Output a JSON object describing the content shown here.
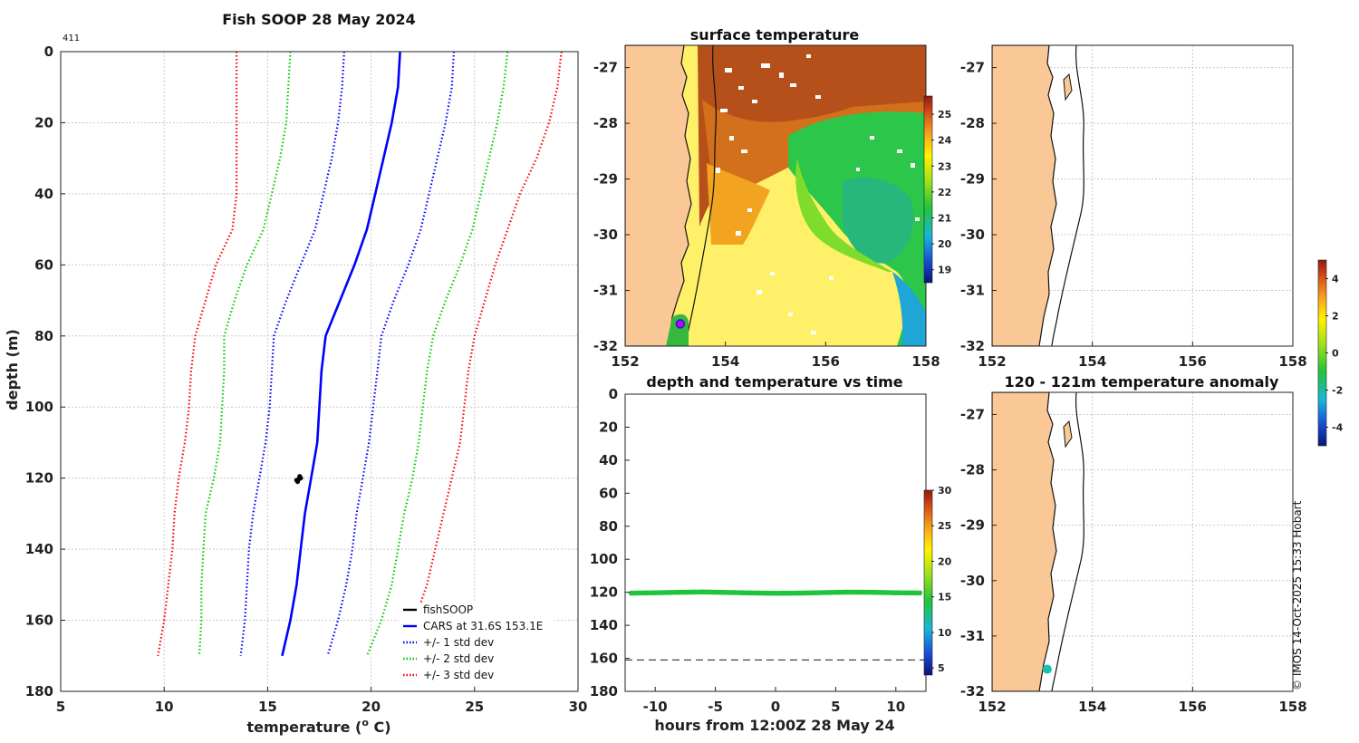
{
  "figure": {
    "main_title": "Fish SOOP 28 May 2024",
    "profile_count": "411",
    "credit": "© IMOS 14-Oct-2025 15:33 Hobart"
  },
  "chart_data": [
    {
      "id": "profile",
      "type": "line",
      "title": "Fish SOOP 28 May 2024",
      "xlabel": "temperature (°C)",
      "xlabel_main": "temperature (",
      "xlabel_sup": "o",
      "xlabel_end": " C)",
      "ylabel": "depth (m)",
      "xlim": [
        5,
        30
      ],
      "ylim": [
        0,
        180
      ],
      "xticks": [
        5,
        10,
        15,
        20,
        25,
        30
      ],
      "yticks": [
        0,
        20,
        40,
        60,
        80,
        100,
        120,
        140,
        160,
        180
      ],
      "y_reversed": true,
      "grid": true,
      "legend_position": "bottom-right",
      "legend": [
        {
          "label": "fishSOOP",
          "color": "#000000",
          "style": "solid"
        },
        {
          "label": "CARS at 31.6S 153.1E",
          "color": "#0000ff",
          "style": "solid"
        },
        {
          "label": "+/- 1 std dev",
          "color": "#0000ff",
          "style": "dotted"
        },
        {
          "label": "+/- 2 std dev",
          "color": "#00cc00",
          "style": "dotted"
        },
        {
          "label": "+/- 3 std dev",
          "color": "#ff0000",
          "style": "dotted"
        }
      ],
      "depths": [
        0,
        10,
        20,
        30,
        40,
        50,
        60,
        70,
        80,
        90,
        100,
        110,
        120,
        130,
        140,
        150,
        160,
        170
      ],
      "series": [
        {
          "name": "CARS at 31.6S 153.1E",
          "color": "#0000ff",
          "dash": "solid",
          "temps": [
            21.4,
            21.3,
            21.0,
            20.6,
            20.2,
            19.8,
            19.2,
            18.5,
            17.8,
            17.6,
            17.5,
            17.4,
            17.1,
            16.8,
            16.6,
            16.4,
            16.1,
            15.7
          ]
        },
        {
          "name": "+1 std dev",
          "color": "#0000ff",
          "dash": "dotted",
          "temps": [
            24.0,
            23.9,
            23.6,
            23.2,
            22.8,
            22.4,
            21.8,
            21.1,
            20.5,
            20.3,
            20.1,
            19.9,
            19.6,
            19.3,
            19.1,
            18.8,
            18.4,
            17.9
          ]
        },
        {
          "name": "-1 std dev",
          "color": "#0000ff",
          "dash": "dotted",
          "temps": [
            18.7,
            18.6,
            18.4,
            18.1,
            17.7,
            17.3,
            16.6,
            15.9,
            15.3,
            15.2,
            15.1,
            14.9,
            14.6,
            14.3,
            14.1,
            14.0,
            13.9,
            13.7
          ]
        },
        {
          "name": "+2 std dev",
          "color": "#00cc00",
          "dash": "dotted",
          "temps": [
            26.6,
            26.4,
            26.1,
            25.7,
            25.3,
            24.9,
            24.3,
            23.6,
            23.0,
            22.7,
            22.5,
            22.3,
            22.0,
            21.6,
            21.3,
            21.0,
            20.5,
            19.8
          ]
        },
        {
          "name": "-2 std dev",
          "color": "#00cc00",
          "dash": "dotted",
          "temps": [
            16.1,
            16.0,
            15.9,
            15.6,
            15.2,
            14.8,
            14.0,
            13.4,
            12.9,
            12.9,
            12.8,
            12.7,
            12.4,
            12.0,
            11.9,
            11.8,
            11.8,
            11.7
          ]
        },
        {
          "name": "+3 std dev",
          "color": "#ff0000",
          "dash": "dotted",
          "temps": [
            29.2,
            29.0,
            28.6,
            28.0,
            27.2,
            26.6,
            26.0,
            25.5,
            25.0,
            24.7,
            24.5,
            24.3,
            23.9,
            23.5,
            23.1,
            22.7,
            22.1,
            21.6
          ]
        },
        {
          "name": "-3 std dev",
          "color": "#ff0000",
          "dash": "dotted",
          "temps": [
            13.5,
            13.5,
            13.5,
            13.5,
            13.5,
            13.3,
            12.5,
            12.0,
            11.5,
            11.3,
            11.2,
            11.0,
            10.7,
            10.5,
            10.4,
            10.2,
            10.0,
            9.7
          ]
        }
      ],
      "fishsoop_points": [
        [
          16.55,
          119.5
        ],
        [
          16.5,
          120.3
        ],
        [
          16.45,
          121.0
        ],
        [
          16.6,
          120.0
        ],
        [
          16.4,
          120.6
        ]
      ]
    },
    {
      "id": "sst",
      "type": "heatmap",
      "title": "surface temperature",
      "xlim": [
        152,
        158
      ],
      "ylim": [
        -32,
        -26.6
      ],
      "xticks": [
        152,
        154,
        156,
        158
      ],
      "yticks": [
        -27,
        -28,
        -29,
        -30,
        -31,
        -32
      ],
      "colorbar_ticks": [
        19,
        20,
        21,
        22,
        23,
        24,
        25
      ],
      "colorbar_range": [
        18.5,
        25.7
      ],
      "regions": [
        {
          "name": "warm north-east",
          "value": 25.2
        },
        {
          "name": "cooler south-east eddy",
          "value": 21.8
        },
        {
          "name": "moderate south-west",
          "value": 23.5
        }
      ],
      "marker": {
        "lon": 153.1,
        "lat": -31.6
      }
    },
    {
      "id": "empty_map",
      "type": "map",
      "title": "",
      "xlim": [
        152,
        158
      ],
      "ylim": [
        -32,
        -26.6
      ],
      "xticks": [
        152,
        154,
        156,
        158
      ],
      "yticks": [
        -27,
        -28,
        -29,
        -30,
        -31,
        -32
      ]
    },
    {
      "id": "depth_time",
      "type": "scatter",
      "title": "depth and temperature vs time",
      "xlabel": "hours from 12:00Z 28 May 24",
      "xlim": [
        -12.5,
        12.5
      ],
      "ylim": [
        0,
        180
      ],
      "y_reversed": true,
      "xticks": [
        -10,
        -5,
        0,
        5,
        10
      ],
      "yticks": [
        0,
        20,
        40,
        60,
        80,
        100,
        120,
        140,
        160,
        180
      ],
      "colorbar_ticks": [
        5,
        10,
        15,
        20,
        25,
        30
      ],
      "colorbar_range": [
        4,
        30
      ],
      "x": [
        -12,
        -10,
        -8,
        -6,
        -4,
        -2,
        0,
        2,
        4,
        6,
        8,
        10,
        12
      ],
      "depth": [
        120.5,
        120.3,
        120.0,
        119.8,
        120.1,
        120.4,
        120.6,
        120.5,
        120.2,
        119.9,
        120.0,
        120.3,
        120.4
      ],
      "temp": [
        16.5,
        16.5,
        16.5,
        16.5,
        16.5,
        16.5,
        16.5,
        16.5,
        16.5,
        16.5,
        16.5,
        16.5,
        16.5
      ],
      "reference_depth": 161
    },
    {
      "id": "anomaly",
      "type": "map",
      "title": "120 - 121m temperature anomaly",
      "xlim": [
        152,
        158
      ],
      "ylim": [
        -32,
        -26.6
      ],
      "xticks": [
        152,
        154,
        156,
        158
      ],
      "yticks": [
        -27,
        -28,
        -29,
        -30,
        -31,
        -32
      ],
      "colorbar_ticks": [
        -4,
        -2,
        0,
        2,
        4
      ],
      "colorbar_range": [
        -5,
        5
      ],
      "points": [
        {
          "lon": 153.1,
          "lat": -31.6,
          "anomaly": -2.0
        }
      ]
    }
  ],
  "colors": {
    "land": "#f9c896",
    "coast": "#111111"
  }
}
